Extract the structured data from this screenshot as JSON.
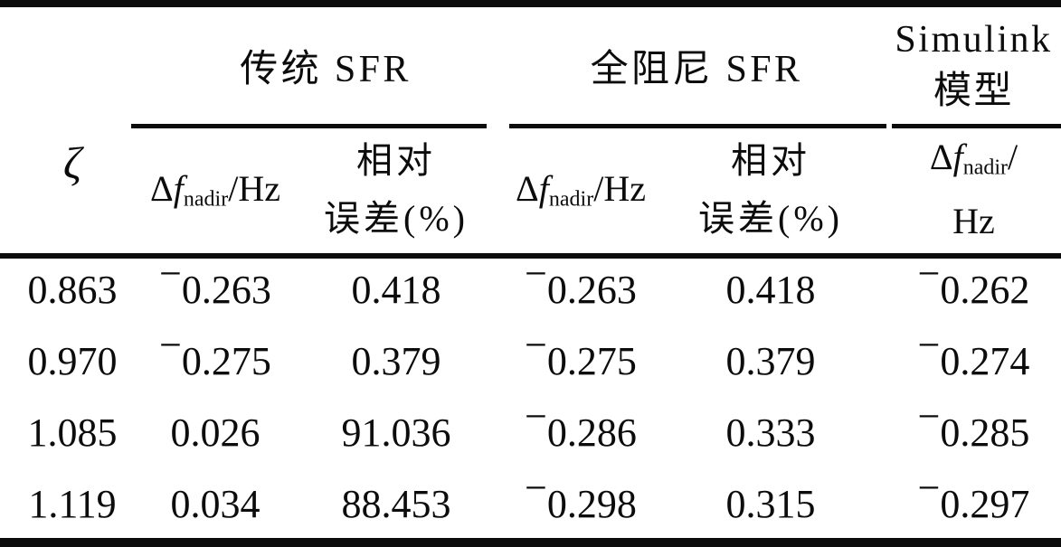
{
  "colors": {
    "text": "#0c0c0c",
    "background": "#ffffff",
    "rule": "#0c0c0c"
  },
  "header": {
    "zeta_symbol": "ζ",
    "group_traditional": "传统 SFR",
    "group_full_damping": "全阻尼 SFR",
    "group_simulink_line1": "Simulink",
    "group_simulink_line2": "模型",
    "subheaders": {
      "dfnadir": {
        "delta": "Δ",
        "f": "f",
        "sub": "nadir",
        "unit": "/Hz"
      },
      "dfnadir_sim": {
        "delta": "Δ",
        "f": "f",
        "sub": "nadir",
        "slash": "/",
        "unit_line2": "Hz"
      },
      "rel_err": {
        "line1": "相对",
        "line2": "误差(%)"
      }
    }
  },
  "rows": [
    {
      "cells": [
        "0.863",
        "−0.263",
        "0.418",
        "−0.263",
        "0.418",
        "−0.262"
      ]
    },
    {
      "cells": [
        "0.970",
        "−0.275",
        "0.379",
        "−0.275",
        "0.379",
        "−0.274"
      ]
    },
    {
      "cells": [
        "1.085",
        "0.026",
        "91.036",
        "−0.286",
        "0.333",
        "−0.285"
      ]
    },
    {
      "cells": [
        "1.119",
        "0.034",
        "88.453",
        "−0.298",
        "0.315",
        "−0.297"
      ]
    }
  ]
}
